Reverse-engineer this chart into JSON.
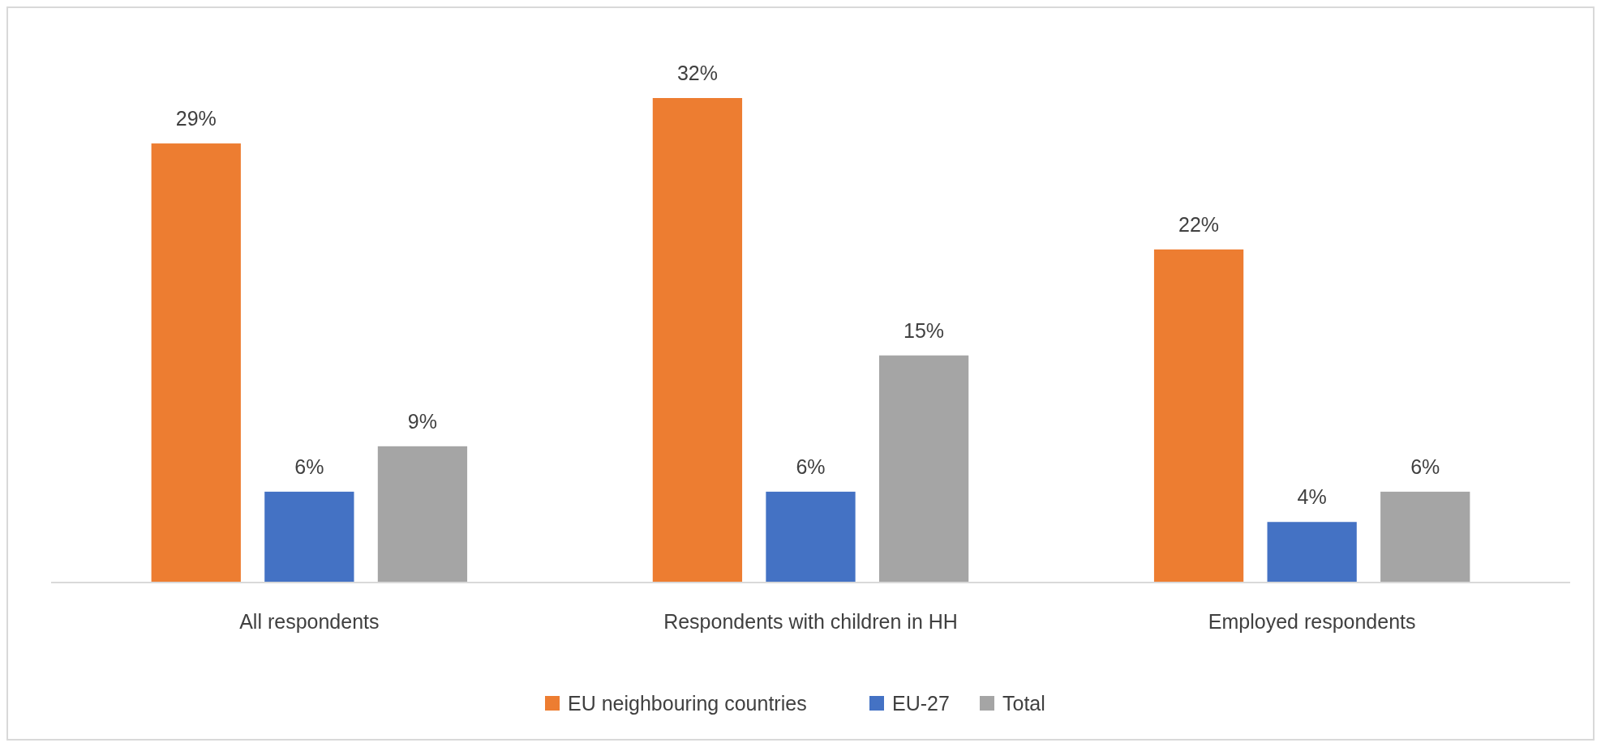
{
  "chart_data": {
    "type": "bar",
    "categories": [
      "All respondents",
      "Respondents with children in HH",
      "Employed respondents"
    ],
    "series": [
      {
        "name": "EU neighbouring countries",
        "color": "#ed7d31",
        "values": [
          29,
          32,
          22
        ],
        "value_labels": [
          "29%",
          "32%",
          "22%"
        ]
      },
      {
        "name": "EU-27",
        "color": "#4472c4",
        "values": [
          6,
          6,
          4
        ],
        "value_labels": [
          "6%",
          "6%",
          "4%"
        ]
      },
      {
        "name": "Total",
        "color": "#a5a5a5",
        "values": [
          9,
          15,
          6
        ],
        "value_labels": [
          "9%",
          "15%",
          "6%"
        ]
      }
    ],
    "legend": "bottom",
    "grid": false
  }
}
